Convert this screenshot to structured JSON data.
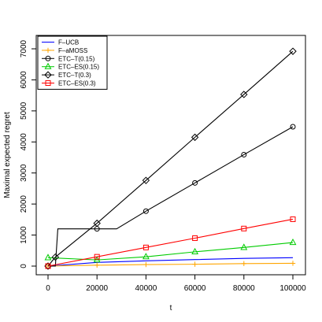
{
  "chart_data": {
    "type": "line",
    "title": "",
    "xlabel": "t",
    "ylabel": "Maximal expected regret",
    "xlim": [
      0,
      100000
    ],
    "ylim": [
      0,
      7000
    ],
    "x_ticks": [
      0,
      20000,
      40000,
      60000,
      80000,
      100000
    ],
    "x_tick_labels": [
      "0",
      "20000",
      "40000",
      "60000",
      "80000",
      "100000"
    ],
    "y_ticks": [
      0,
      1000,
      2000,
      3000,
      4000,
      5000,
      6000,
      7000
    ],
    "y_tick_labels": [
      "0",
      "1000",
      "2000",
      "3000",
      "4000",
      "5000",
      "6000",
      "7000"
    ],
    "grid": false,
    "legend_position": "top-left",
    "series": [
      {
        "name": "F–UCB",
        "color": "#0000ff",
        "marker": "none",
        "x": [
          0,
          20000,
          40000,
          60000,
          80000,
          100000
        ],
        "y": [
          0,
          120,
          170,
          210,
          250,
          270
        ]
      },
      {
        "name": "F–aMOSS",
        "color": "#ffa500",
        "marker": "plus",
        "x": [
          0,
          20000,
          40000,
          60000,
          80000,
          100000
        ],
        "y": [
          0,
          30,
          50,
          60,
          80,
          90
        ]
      },
      {
        "name": "ETC–T(0.15)",
        "color": "#000000",
        "marker": "circle",
        "x": [
          0,
          3000,
          4000,
          28000,
          40000,
          60000,
          80000,
          100000
        ],
        "y": [
          0,
          0,
          1200,
          1200,
          1770,
          2680,
          3590,
          4490
        ],
        "marker_x": [
          0,
          20000,
          40000,
          60000,
          80000,
          100000
        ],
        "marker_y": [
          0,
          1200,
          1770,
          2680,
          3590,
          4490
        ]
      },
      {
        "name": "ETC–ES(0.15)",
        "color": "#00cc00",
        "marker": "triangle",
        "x": [
          0,
          20000,
          40000,
          60000,
          80000,
          100000
        ],
        "y": [
          270,
          200,
          300,
          460,
          600,
          760
        ]
      },
      {
        "name": "ETC–T(0.3)",
        "color": "#000000",
        "marker": "diamond",
        "x": [
          0,
          3000,
          20000,
          40000,
          60000,
          80000,
          100000
        ],
        "y": [
          0,
          290,
          1380,
          2760,
          4150,
          5530,
          6920
        ]
      },
      {
        "name": "ETC–ES(0.3)",
        "color": "#ff0000",
        "marker": "square",
        "x": [
          0,
          20000,
          40000,
          60000,
          80000,
          100000
        ],
        "y": [
          0,
          300,
          600,
          900,
          1210,
          1510
        ]
      }
    ]
  }
}
